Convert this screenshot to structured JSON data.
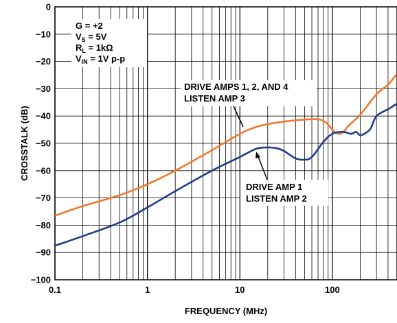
{
  "chart_data": {
    "type": "line",
    "title": "",
    "xlabel": "FREQUENCY (MHz)",
    "ylabel": "CROSSTALK (dB)",
    "xscale": "log",
    "xlim": [
      0.1,
      500
    ],
    "ylim": [
      -100,
      0
    ],
    "grid": true,
    "x_tick_labels": [
      "0.1",
      "1",
      "10",
      "100"
    ],
    "y_tick_labels": [
      "0",
      "−10",
      "−20",
      "−30",
      "−40",
      "−50",
      "−60",
      "−70",
      "−80",
      "−90",
      "−100"
    ],
    "conditions": {
      "gain": "G = +2",
      "vs_main": "V",
      "vs_sub": "S",
      "vs_rest": " = 5V",
      "rl_main": "R",
      "rl_sub": "L",
      "rl_rest": " = 1kΩ",
      "vin_main": "V",
      "vin_sub": "IN",
      "vin_rest": " = 1V p-p"
    },
    "series": [
      {
        "name": "DRIVE AMPS 1, 2, AND 4 LISTEN AMP 3",
        "label_lines": [
          "DRIVE AMPS 1, 2, AND 4",
          "LISTEN AMP 3"
        ],
        "color": "#F0782D",
        "points": [
          [
            0.1,
            -76.5
          ],
          [
            0.2,
            -73
          ],
          [
            0.5,
            -69
          ],
          [
            1,
            -65
          ],
          [
            2,
            -60
          ],
          [
            5,
            -52.5
          ],
          [
            10,
            -46.5
          ],
          [
            15,
            -44
          ],
          [
            20,
            -43
          ],
          [
            30,
            -42
          ],
          [
            50,
            -41.3
          ],
          [
            70,
            -41.2
          ],
          [
            85,
            -42.3
          ],
          [
            100,
            -45
          ],
          [
            115,
            -46.5
          ],
          [
            130,
            -46
          ],
          [
            150,
            -43.5
          ],
          [
            200,
            -39.5
          ],
          [
            300,
            -32
          ],
          [
            400,
            -28.5
          ],
          [
            500,
            -24.5
          ]
        ]
      },
      {
        "name": "DRIVE AMP 1 LISTEN AMP 2",
        "label_lines": [
          "DRIVE AMP 1",
          "LISTEN AMP 2"
        ],
        "color": "#1F3C88",
        "points": [
          [
            0.1,
            -87.5
          ],
          [
            0.2,
            -84
          ],
          [
            0.5,
            -79
          ],
          [
            1,
            -73.5
          ],
          [
            2,
            -67.5
          ],
          [
            5,
            -60
          ],
          [
            10,
            -55
          ],
          [
            15,
            -52
          ],
          [
            20,
            -51.5
          ],
          [
            25,
            -51.8
          ],
          [
            30,
            -52.8
          ],
          [
            40,
            -55.5
          ],
          [
            50,
            -56
          ],
          [
            60,
            -55
          ],
          [
            80,
            -49.5
          ],
          [
            100,
            -46.5
          ],
          [
            130,
            -45.8
          ],
          [
            160,
            -46.5
          ],
          [
            180,
            -45.8
          ],
          [
            200,
            -47
          ],
          [
            230,
            -46.2
          ],
          [
            260,
            -44.5
          ],
          [
            300,
            -40
          ],
          [
            400,
            -37.5
          ],
          [
            500,
            -35.5
          ]
        ]
      }
    ]
  }
}
